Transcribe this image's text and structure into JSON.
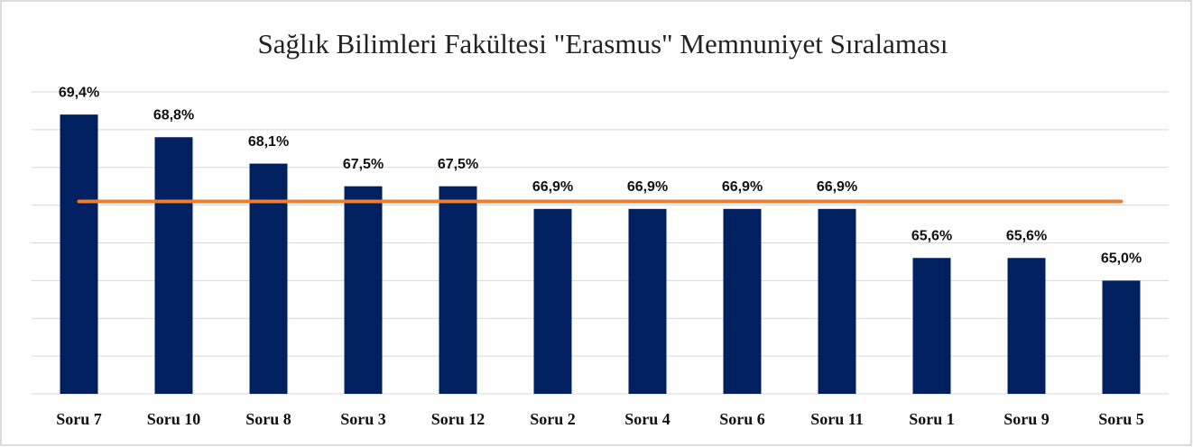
{
  "chart_data": {
    "type": "bar",
    "title": "Sağlık Bilimleri Fakültesi \"Erasmus\" Memnuniyet Sıralaması",
    "categories": [
      "Soru 7",
      "Soru 10",
      "Soru 8",
      "Soru 3",
      "Soru 12",
      "Soru 2",
      "Soru 4",
      "Soru 6",
      "Soru 11",
      "Soru 1",
      "Soru 9",
      "Soru 5"
    ],
    "series": [
      {
        "type": "bar",
        "color": "#002060",
        "values": [
          69.4,
          68.8,
          68.1,
          67.5,
          67.5,
          66.9,
          66.9,
          66.9,
          66.9,
          65.6,
          65.6,
          65.0
        ],
        "value_labels": [
          "69,4%",
          "68,8%",
          "68,1%",
          "67,5%",
          "67,5%",
          "66,9%",
          "66,9%",
          "66,9%",
          "66,9%",
          "65,6%",
          "65,6%",
          "65,0%"
        ]
      },
      {
        "type": "line",
        "color": "#ED7D31",
        "values": [
          67.1,
          67.1,
          67.1,
          67.1,
          67.1,
          67.1,
          67.1,
          67.1,
          67.1,
          67.1,
          67.1,
          67.1
        ]
      }
    ],
    "ylim": [
      62,
      70
    ],
    "yticks": [
      62,
      63,
      64,
      65,
      66,
      67,
      68,
      69,
      70
    ],
    "grid": true
  }
}
